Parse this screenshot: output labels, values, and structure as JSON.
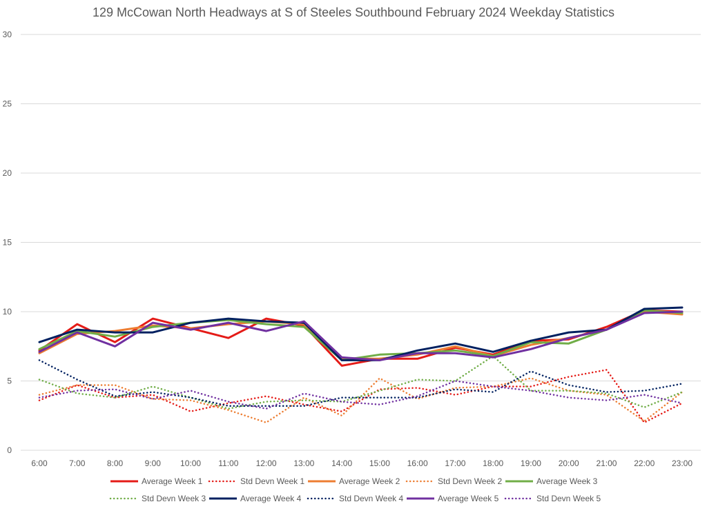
{
  "chart_data": {
    "type": "line",
    "title": "129 McCowan North Headways at S of Steeles Southbound February 2024 Weekday Statistics",
    "xlabel": "",
    "ylabel": "",
    "ylim": [
      0,
      30
    ],
    "yticks": [
      "0",
      "5",
      "10",
      "15",
      "20",
      "25",
      "30"
    ],
    "grid": true,
    "legend_position": "bottom",
    "categories": [
      "6:00",
      "7:00",
      "8:00",
      "9:00",
      "10:00",
      "11:00",
      "12:00",
      "13:00",
      "14:00",
      "15:00",
      "16:00",
      "17:00",
      "18:00",
      "19:00",
      "20:00",
      "21:00",
      "22:00",
      "23:00"
    ],
    "series": [
      {
        "name": "Average Week 1",
        "color": "#e41b17",
        "style": "solid",
        "values": [
          7.2,
          9.1,
          7.8,
          9.5,
          8.8,
          8.1,
          9.5,
          9.0,
          6.1,
          6.6,
          6.6,
          7.4,
          6.9,
          7.9,
          8.0,
          8.9,
          10.1,
          10.0
        ]
      },
      {
        "name": "Std Devn Week 1",
        "color": "#e41b17",
        "style": "dotted",
        "values": [
          3.6,
          4.7,
          3.8,
          4.0,
          2.8,
          3.4,
          3.9,
          3.3,
          2.8,
          4.4,
          4.5,
          4.0,
          4.6,
          4.6,
          5.3,
          5.8,
          2.0,
          3.4
        ]
      },
      {
        "name": "Average Week 2",
        "color": "#ed7d31",
        "style": "solid",
        "values": [
          7.0,
          8.4,
          8.6,
          9.0,
          8.8,
          9.1,
          9.3,
          9.1,
          6.6,
          6.6,
          6.9,
          7.5,
          6.8,
          7.6,
          8.1,
          8.7,
          10.0,
          9.8
        ]
      },
      {
        "name": "Std Devn Week 2",
        "color": "#ed7d31",
        "style": "dotted",
        "values": [
          4.0,
          4.7,
          4.7,
          3.7,
          3.6,
          2.9,
          2.0,
          3.8,
          2.5,
          5.2,
          3.7,
          4.5,
          4.6,
          5.2,
          4.3,
          4.0,
          2.1,
          4.2
        ]
      },
      {
        "name": "Average Week 3",
        "color": "#70ad47",
        "style": "solid",
        "values": [
          7.3,
          8.6,
          8.2,
          8.9,
          9.2,
          9.4,
          9.1,
          8.9,
          6.5,
          6.9,
          7.0,
          7.2,
          6.8,
          7.8,
          7.7,
          8.7,
          10.1,
          9.9
        ]
      },
      {
        "name": "Std Devn Week 3",
        "color": "#70ad47",
        "style": "dotted",
        "values": [
          5.1,
          4.1,
          3.8,
          4.6,
          3.8,
          3.0,
          3.5,
          3.6,
          3.5,
          4.3,
          5.1,
          5.0,
          6.8,
          4.3,
          4.3,
          4.1,
          3.1,
          4.2
        ]
      },
      {
        "name": "Average Week 4",
        "color": "#002060",
        "style": "solid",
        "values": [
          7.8,
          8.7,
          8.5,
          8.5,
          9.2,
          9.5,
          9.3,
          9.2,
          6.5,
          6.5,
          7.2,
          7.7,
          7.1,
          7.9,
          8.5,
          8.7,
          10.2,
          10.3
        ]
      },
      {
        "name": "Std Devn Week 4",
        "color": "#002060",
        "style": "dotted",
        "values": [
          6.5,
          5.1,
          3.9,
          4.2,
          3.8,
          3.2,
          3.2,
          3.2,
          3.8,
          3.8,
          3.8,
          4.4,
          4.2,
          5.7,
          4.7,
          4.2,
          4.3,
          4.8
        ]
      },
      {
        "name": "Average Week 5",
        "color": "#7030a0",
        "style": "solid",
        "values": [
          7.1,
          8.5,
          7.5,
          9.2,
          8.7,
          9.2,
          8.6,
          9.3,
          6.7,
          6.5,
          7.0,
          7.0,
          6.7,
          7.3,
          8.1,
          8.7,
          9.9,
          10.0
        ]
      },
      {
        "name": "Std Devn Week 5",
        "color": "#7030a0",
        "style": "dotted",
        "values": [
          3.8,
          4.3,
          4.4,
          3.7,
          4.3,
          3.5,
          3.0,
          4.1,
          3.5,
          3.3,
          3.9,
          5.0,
          4.6,
          4.3,
          3.8,
          3.6,
          4.0,
          3.4
        ]
      }
    ]
  }
}
